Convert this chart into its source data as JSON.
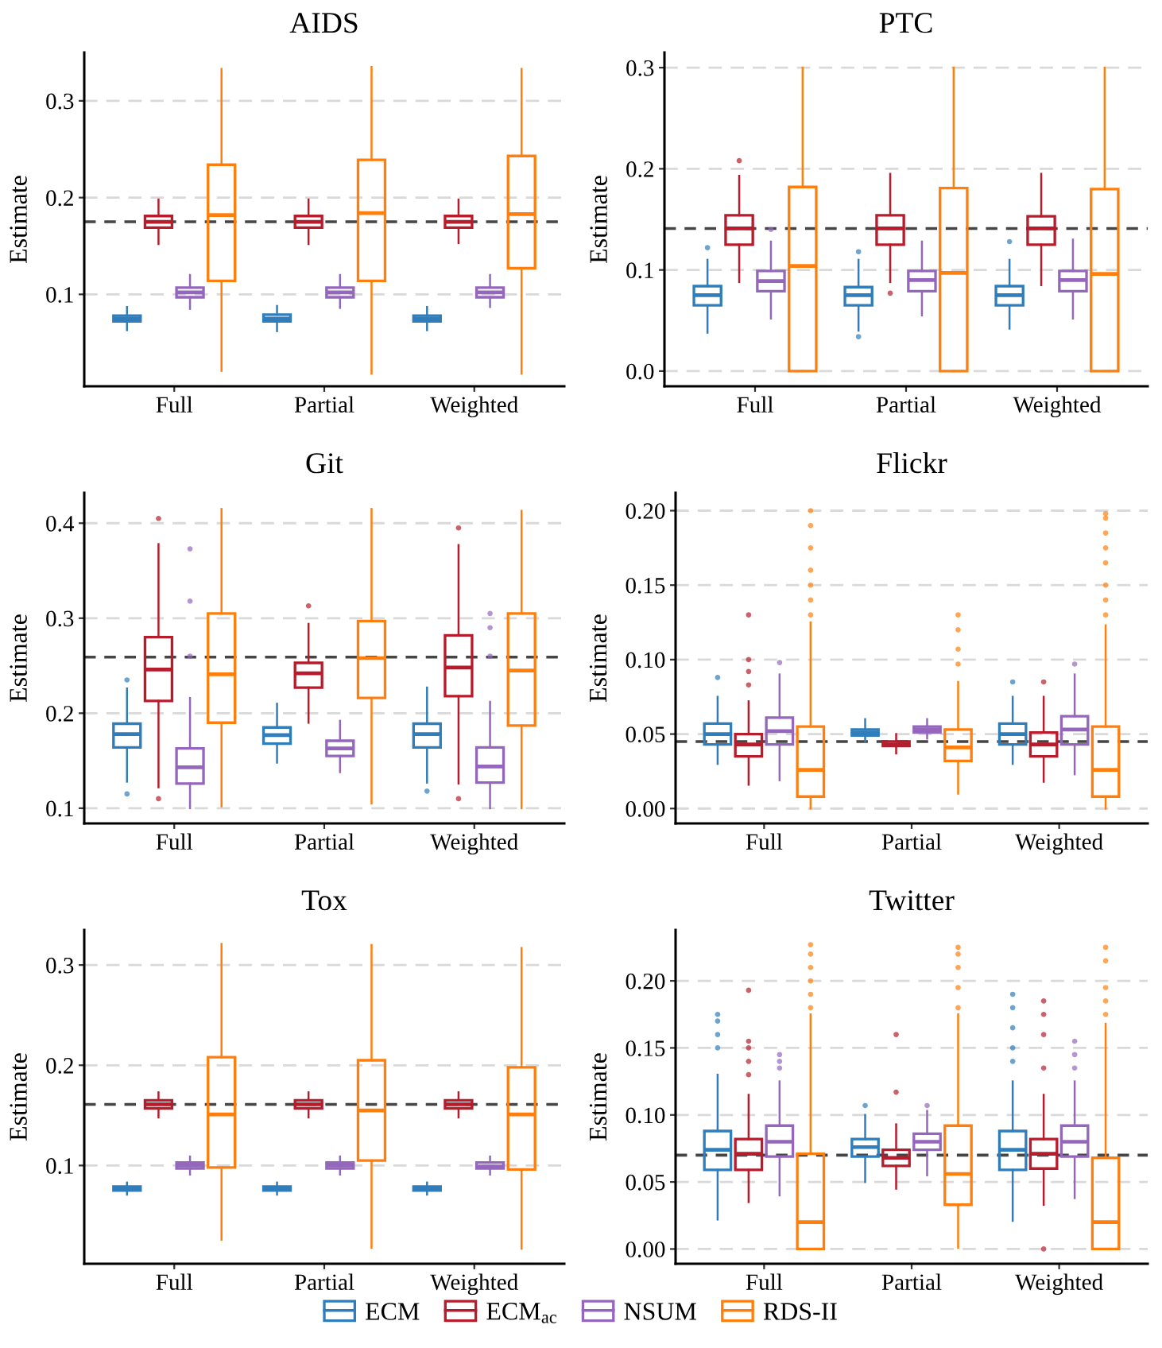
{
  "chart_data": [
    {
      "type": "box",
      "title": "AIDS",
      "ylabel": "Estimate",
      "categories": [
        "Full",
        "Partial",
        "Weighted"
      ],
      "ylim": [
        0.005,
        0.35
      ],
      "yticks": [
        0.1,
        0.2,
        0.3
      ],
      "grid": "y",
      "legend": "bottom",
      "ref_lines": [
        {
          "axis": "y",
          "value": 0.175,
          "color": "#454545",
          "line_style": "dashed"
        }
      ],
      "series": [
        {
          "name": "ECM",
          "color": "#2f7dbb",
          "boxes": [
            {
              "low": 0.063,
              "q1": 0.072,
              "median": 0.075,
              "q3": 0.078,
              "high": 0.087
            },
            {
              "low": 0.062,
              "q1": 0.072,
              "median": 0.075,
              "q3": 0.079,
              "high": 0.088
            },
            {
              "low": 0.063,
              "q1": 0.072,
              "median": 0.075,
              "q3": 0.078,
              "high": 0.087
            }
          ]
        },
        {
          "name": "ECM$_{ac}$",
          "color": "#b71c2c",
          "boxes": [
            {
              "low": 0.152,
              "q1": 0.169,
              "median": 0.175,
              "q3": 0.181,
              "high": 0.198
            },
            {
              "low": 0.152,
              "q1": 0.169,
              "median": 0.175,
              "q3": 0.181,
              "high": 0.198
            },
            {
              "low": 0.153,
              "q1": 0.169,
              "median": 0.175,
              "q3": 0.181,
              "high": 0.198
            }
          ]
        },
        {
          "name": "NSUM",
          "color": "#9467bd",
          "boxes": [
            {
              "low": 0.085,
              "q1": 0.097,
              "median": 0.102,
              "q3": 0.107,
              "high": 0.12
            },
            {
              "low": 0.086,
              "q1": 0.097,
              "median": 0.102,
              "q3": 0.107,
              "high": 0.12
            },
            {
              "low": 0.087,
              "q1": 0.097,
              "median": 0.102,
              "q3": 0.107,
              "high": 0.12
            }
          ]
        },
        {
          "name": "RDS-II",
          "color": "#ff7f0e",
          "boxes": [
            {
              "low": 0.021,
              "q1": 0.114,
              "median": 0.182,
              "q3": 0.234,
              "high": 0.333
            },
            {
              "low": 0.018,
              "q1": 0.114,
              "median": 0.184,
              "q3": 0.239,
              "high": 0.335
            },
            {
              "low": 0.018,
              "q1": 0.127,
              "median": 0.183,
              "q3": 0.243,
              "high": 0.333
            }
          ]
        }
      ]
    },
    {
      "type": "box",
      "title": "PTC",
      "ylabel": "Estimate",
      "categories": [
        "Full",
        "Partial",
        "Weighted"
      ],
      "ylim": [
        -0.015,
        0.315
      ],
      "yticks": [
        {
          "value": 0,
          "label": "0.0"
        },
        0.1,
        0.2,
        0.3
      ],
      "grid": "y",
      "ref_lines": [
        {
          "axis": "y",
          "value": 0.141,
          "color": "#454545",
          "line_style": "dashed"
        }
      ],
      "series": [
        {
          "color": "#2f7dbb",
          "boxes": [
            {
              "low": 0.038,
              "q1": 0.065,
              "median": 0.075,
              "q3": 0.084,
              "high": 0.11,
              "outliers": [
                0.122
              ]
            },
            {
              "low": 0.04,
              "q1": 0.065,
              "median": 0.075,
              "q3": 0.083,
              "high": 0.11,
              "outliers": [
                0.118,
                0.034
              ]
            },
            {
              "low": 0.042,
              "q1": 0.065,
              "median": 0.075,
              "q3": 0.084,
              "high": 0.11,
              "outliers": [
                0.128
              ]
            }
          ]
        },
        {
          "color": "#b71c2c",
          "boxes": [
            {
              "low": 0.088,
              "q1": 0.125,
              "median": 0.141,
              "q3": 0.154,
              "high": 0.193,
              "outliers": [
                0.208
              ]
            },
            {
              "low": 0.088,
              "q1": 0.125,
              "median": 0.141,
              "q3": 0.154,
              "high": 0.195,
              "outliers": [
                0.077
              ]
            },
            {
              "low": 0.085,
              "q1": 0.125,
              "median": 0.141,
              "q3": 0.153,
              "high": 0.195
            }
          ]
        },
        {
          "color": "#9467bd",
          "boxes": [
            {
              "low": 0.052,
              "q1": 0.079,
              "median": 0.089,
              "q3": 0.099,
              "high": 0.128,
              "outliers": [
                0.14
              ]
            },
            {
              "low": 0.055,
              "q1": 0.079,
              "median": 0.09,
              "q3": 0.099,
              "high": 0.128
            },
            {
              "low": 0.052,
              "q1": 0.079,
              "median": 0.09,
              "q3": 0.099,
              "high": 0.13
            }
          ]
        },
        {
          "color": "#ff7f0e",
          "boxes": [
            {
              "low": 0,
              "q1": 0,
              "median": 0.104,
              "q3": 0.182,
              "high": 0.3
            },
            {
              "low": 0,
              "q1": 0,
              "median": 0.097,
              "q3": 0.181,
              "high": 0.3
            },
            {
              "low": 0,
              "q1": 0,
              "median": 0.096,
              "q3": 0.18,
              "high": 0.3
            }
          ]
        }
      ]
    },
    {
      "type": "box",
      "title": "Git",
      "ylabel": "Estimate",
      "categories": [
        "Full",
        "Partial",
        "Weighted"
      ],
      "ylim": [
        0.084,
        0.432
      ],
      "yticks": [
        0.1,
        0.2,
        0.3,
        0.4
      ],
      "grid": "y",
      "ref_lines": [
        {
          "axis": "y",
          "value": 0.259,
          "color": "#454545",
          "line_style": "dashed"
        }
      ],
      "series": [
        {
          "color": "#2f7dbb",
          "boxes": [
            {
              "low": 0.128,
              "q1": 0.164,
              "median": 0.178,
              "q3": 0.189,
              "high": 0.226,
              "outliers": [
                0.235,
                0.115
              ]
            },
            {
              "low": 0.148,
              "q1": 0.168,
              "median": 0.177,
              "q3": 0.185,
              "high": 0.21
            },
            {
              "low": 0.127,
              "q1": 0.164,
              "median": 0.178,
              "q3": 0.189,
              "high": 0.227,
              "outliers": [
                0.118
              ]
            }
          ]
        },
        {
          "color": "#b71c2c",
          "boxes": [
            {
              "low": 0.122,
              "q1": 0.213,
              "median": 0.246,
              "q3": 0.28,
              "high": 0.378,
              "outliers": [
                0.405,
                0.11
              ]
            },
            {
              "low": 0.19,
              "q1": 0.227,
              "median": 0.242,
              "q3": 0.253,
              "high": 0.294,
              "outliers": [
                0.313
              ]
            },
            {
              "low": 0.126,
              "q1": 0.218,
              "median": 0.248,
              "q3": 0.282,
              "high": 0.377,
              "outliers": [
                0.395,
                0.11
              ]
            }
          ]
        },
        {
          "color": "#9467bd",
          "boxes": [
            {
              "low": 0.1,
              "q1": 0.126,
              "median": 0.143,
              "q3": 0.163,
              "high": 0.216,
              "outliers": [
                0.373,
                0.318,
                0.26
              ]
            },
            {
              "low": 0.138,
              "q1": 0.155,
              "median": 0.163,
              "q3": 0.171,
              "high": 0.192
            },
            {
              "low": 0.1,
              "q1": 0.127,
              "median": 0.144,
              "q3": 0.164,
              "high": 0.212,
              "outliers": [
                0.305,
                0.29,
                0.26
              ]
            }
          ]
        },
        {
          "color": "#ff7f0e",
          "boxes": [
            {
              "low": 0.102,
              "q1": 0.19,
              "median": 0.241,
              "q3": 0.305,
              "high": 0.415
            },
            {
              "low": 0.105,
              "q1": 0.216,
              "median": 0.258,
              "q3": 0.297,
              "high": 0.415
            },
            {
              "low": 0.1,
              "q1": 0.187,
              "median": 0.245,
              "q3": 0.305,
              "high": 0.413
            }
          ]
        }
      ]
    },
    {
      "type": "box",
      "title": "Flickr",
      "ylabel": "Estimate",
      "categories": [
        "Full",
        "Partial",
        "Weighted"
      ],
      "ylim": [
        -0.01,
        0.212
      ],
      "yticks": [
        {
          "value": 0,
          "label": "0.00"
        },
        0.05,
        {
          "value": 0.1,
          "label": "0.10"
        },
        0.15,
        {
          "value": 0.2,
          "label": "0.20"
        }
      ],
      "grid": "y",
      "ref_lines": [
        {
          "axis": "y",
          "value": 0.045,
          "color": "#454545",
          "line_style": "dashed"
        }
      ],
      "series": [
        {
          "color": "#2f7dbb",
          "boxes": [
            {
              "low": 0.03,
              "q1": 0.043,
              "median": 0.05,
              "q3": 0.057,
              "high": 0.075,
              "outliers": [
                0.088
              ]
            },
            {
              "low": 0.045,
              "q1": 0.049,
              "median": 0.051,
              "q3": 0.053,
              "high": 0.06
            },
            {
              "low": 0.03,
              "q1": 0.043,
              "median": 0.05,
              "q3": 0.057,
              "high": 0.075,
              "outliers": [
                0.085
              ]
            }
          ]
        },
        {
          "color": "#b71c2c",
          "boxes": [
            {
              "low": 0.016,
              "q1": 0.035,
              "median": 0.043,
              "q3": 0.05,
              "high": 0.072,
              "outliers": [
                0.13,
                0.1,
                0.092,
                0.083
              ]
            },
            {
              "low": 0.037,
              "q1": 0.042,
              "median": 0.043,
              "q3": 0.045,
              "high": 0.05
            },
            {
              "low": 0.018,
              "q1": 0.035,
              "median": 0.043,
              "q3": 0.051,
              "high": 0.075,
              "outliers": [
                0.085
              ]
            }
          ]
        },
        {
          "color": "#9467bd",
          "boxes": [
            {
              "low": 0.019,
              "q1": 0.043,
              "median": 0.052,
              "q3": 0.061,
              "high": 0.09,
              "outliers": [
                0.098
              ]
            },
            {
              "low": 0.047,
              "q1": 0.051,
              "median": 0.053,
              "q3": 0.055,
              "high": 0.06
            },
            {
              "low": 0.023,
              "q1": 0.043,
              "median": 0.053,
              "q3": 0.062,
              "high": 0.09,
              "outliers": [
                0.097
              ]
            }
          ]
        },
        {
          "color": "#ff7f0e",
          "boxes": [
            {
              "low": 0,
              "q1": 0.008,
              "median": 0.026,
              "q3": 0.055,
              "high": 0.125,
              "outliers": [
                0.2,
                0.19,
                0.175,
                0.16,
                0.15,
                0.14,
                0.13
              ]
            },
            {
              "low": 0.01,
              "q1": 0.032,
              "median": 0.041,
              "q3": 0.053,
              "high": 0.085,
              "outliers": [
                0.13,
                0.12,
                0.107,
                0.097
              ]
            },
            {
              "low": 0,
              "q1": 0.008,
              "median": 0.026,
              "q3": 0.055,
              "high": 0.123,
              "outliers": [
                0.198,
                0.195,
                0.185,
                0.175,
                0.165,
                0.15,
                0.14,
                0.13
              ]
            }
          ]
        }
      ]
    },
    {
      "type": "box",
      "title": "Tox",
      "ylabel": "Estimate",
      "categories": [
        "Full",
        "Partial",
        "Weighted"
      ],
      "ylim": [
        0.002,
        0.335
      ],
      "yticks": [
        0.1,
        0.2,
        0.3
      ],
      "grid": "y",
      "ref_lines": [
        {
          "axis": "y",
          "value": 0.161,
          "color": "#454545",
          "line_style": "dashed"
        }
      ],
      "series": [
        {
          "color": "#2f7dbb",
          "boxes": [
            {
              "low": 0.071,
              "q1": 0.075,
              "median": 0.077,
              "q3": 0.079,
              "high": 0.083
            },
            {
              "low": 0.071,
              "q1": 0.075,
              "median": 0.077,
              "q3": 0.079,
              "high": 0.083
            },
            {
              "low": 0.071,
              "q1": 0.075,
              "median": 0.077,
              "q3": 0.079,
              "high": 0.083
            }
          ]
        },
        {
          "color": "#b71c2c",
          "boxes": [
            {
              "low": 0.148,
              "q1": 0.157,
              "median": 0.161,
              "q3": 0.165,
              "high": 0.173
            },
            {
              "low": 0.148,
              "q1": 0.157,
              "median": 0.161,
              "q3": 0.165,
              "high": 0.173
            },
            {
              "low": 0.148,
              "q1": 0.157,
              "median": 0.161,
              "q3": 0.165,
              "high": 0.173
            }
          ]
        },
        {
          "color": "#9467bd",
          "boxes": [
            {
              "low": 0.091,
              "q1": 0.097,
              "median": 0.1,
              "q3": 0.103,
              "high": 0.109
            },
            {
              "low": 0.091,
              "q1": 0.097,
              "median": 0.1,
              "q3": 0.103,
              "high": 0.109
            },
            {
              "low": 0.091,
              "q1": 0.097,
              "median": 0.099,
              "q3": 0.103,
              "high": 0.109
            }
          ]
        },
        {
          "color": "#ff7f0e",
          "boxes": [
            {
              "low": 0.026,
              "q1": 0.098,
              "median": 0.151,
              "q3": 0.208,
              "high": 0.321
            },
            {
              "low": 0.018,
              "q1": 0.105,
              "median": 0.155,
              "q3": 0.205,
              "high": 0.32
            },
            {
              "low": 0.017,
              "q1": 0.096,
              "median": 0.151,
              "q3": 0.198,
              "high": 0.317
            }
          ]
        }
      ]
    },
    {
      "type": "box",
      "title": "Twitter",
      "ylabel": "Estimate",
      "categories": [
        "Full",
        "Partial",
        "Weighted"
      ],
      "ylim": [
        -0.011,
        0.238
      ],
      "yticks": [
        {
          "value": 0,
          "label": "0.00"
        },
        0.05,
        {
          "value": 0.1,
          "label": "0.10"
        },
        0.15,
        {
          "value": 0.2,
          "label": "0.20"
        }
      ],
      "grid": "y",
      "ref_lines": [
        {
          "axis": "y",
          "value": 0.07,
          "color": "#454545",
          "line_style": "dashed"
        }
      ],
      "series": [
        {
          "color": "#2f7dbb",
          "boxes": [
            {
              "low": 0.022,
              "q1": 0.059,
              "median": 0.074,
              "q3": 0.088,
              "high": 0.13,
              "outliers": [
                0.175,
                0.17,
                0.16,
                0.15
              ]
            },
            {
              "low": 0.05,
              "q1": 0.069,
              "median": 0.076,
              "q3": 0.082,
              "high": 0.1,
              "outliers": [
                0.107
              ]
            },
            {
              "low": 0.021,
              "q1": 0.059,
              "median": 0.074,
              "q3": 0.088,
              "high": 0.125,
              "outliers": [
                0.19,
                0.18,
                0.165,
                0.15,
                0.14
              ]
            }
          ]
        },
        {
          "color": "#b71c2c",
          "boxes": [
            {
              "low": 0.035,
              "q1": 0.059,
              "median": 0.071,
              "q3": 0.082,
              "high": 0.115,
              "outliers": [
                0.193,
                0.155,
                0.15,
                0.14,
                0.13
              ]
            },
            {
              "low": 0.045,
              "q1": 0.062,
              "median": 0.068,
              "q3": 0.074,
              "high": 0.093,
              "outliers": [
                0.16,
                0.117
              ]
            },
            {
              "low": 0.033,
              "q1": 0.06,
              "median": 0.071,
              "q3": 0.082,
              "high": 0.115,
              "outliers": [
                0.185,
                0.175,
                0.16,
                0.135,
                0.0
              ]
            }
          ]
        },
        {
          "color": "#9467bd",
          "boxes": [
            {
              "low": 0.04,
              "q1": 0.069,
              "median": 0.08,
              "q3": 0.092,
              "high": 0.125,
              "outliers": [
                0.145,
                0.14,
                0.135
              ]
            },
            {
              "low": 0.055,
              "q1": 0.074,
              "median": 0.08,
              "q3": 0.086,
              "high": 0.103,
              "outliers": [
                0.107
              ]
            },
            {
              "low": 0.038,
              "q1": 0.069,
              "median": 0.08,
              "q3": 0.092,
              "high": 0.125,
              "outliers": [
                0.155,
                0.145,
                0.135
              ]
            }
          ]
        },
        {
          "color": "#ff7f0e",
          "boxes": [
            {
              "low": 0,
              "q1": 0,
              "median": 0.02,
              "q3": 0.071,
              "high": 0.175,
              "outliers": [
                0.227,
                0.22,
                0.21,
                0.2,
                0.19,
                0.18
              ]
            },
            {
              "low": 0.001,
              "q1": 0.033,
              "median": 0.056,
              "q3": 0.092,
              "high": 0.175,
              "outliers": [
                0.225,
                0.22,
                0.21,
                0.195,
                0.18
              ]
            },
            {
              "low": 0,
              "q1": 0,
              "median": 0.02,
              "q3": 0.068,
              "high": 0.168,
              "outliers": [
                0.225,
                0.215,
                0.195,
                0.185,
                0.175
              ]
            }
          ]
        }
      ]
    }
  ]
}
